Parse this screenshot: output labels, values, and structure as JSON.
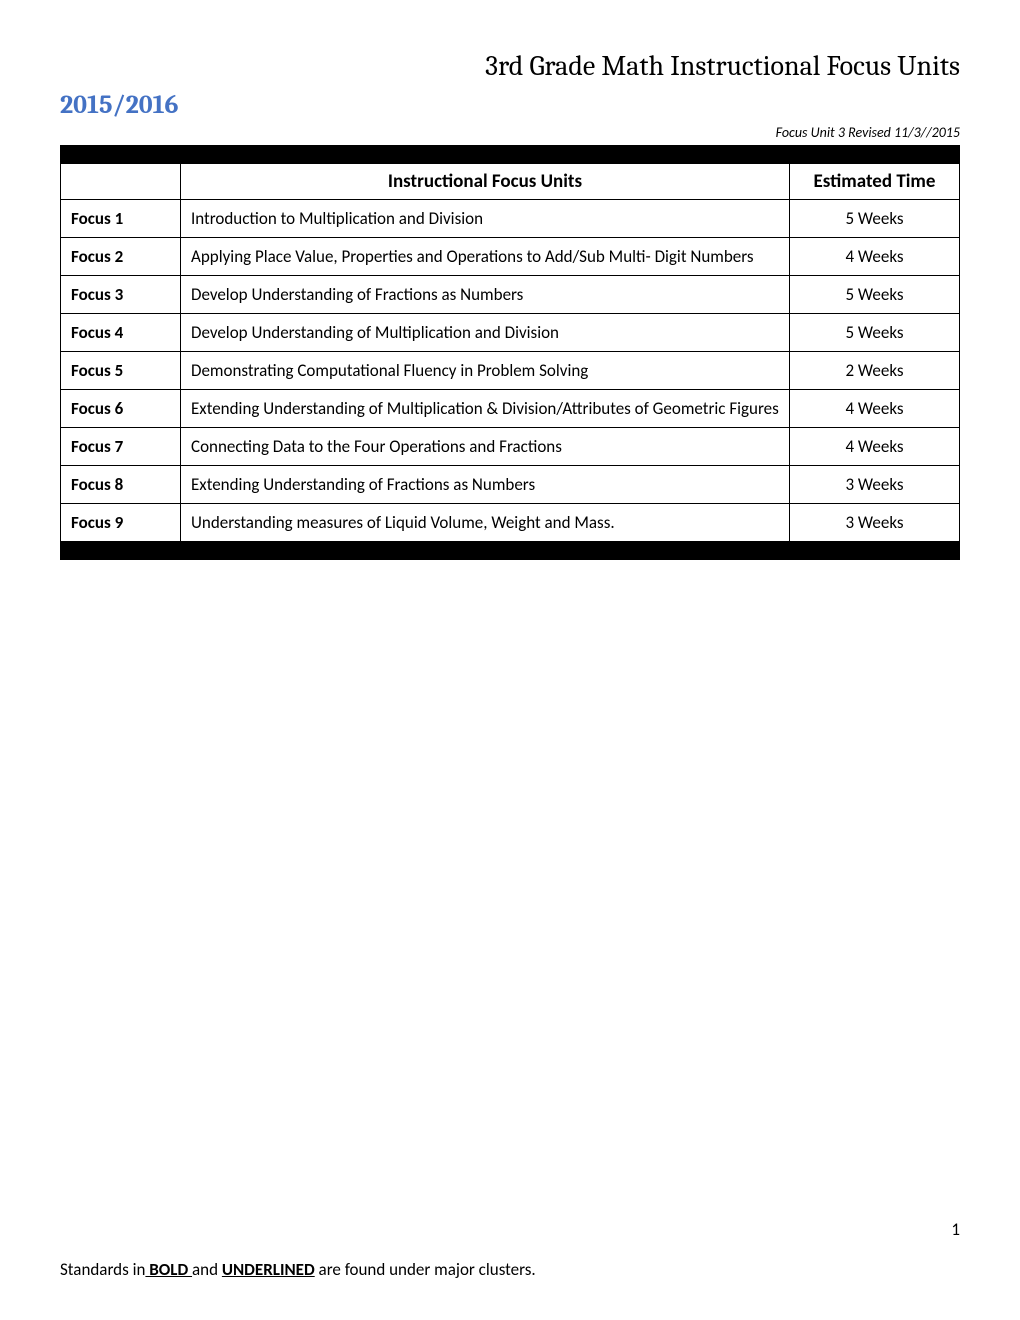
{
  "document": {
    "title": "3rd Grade Math Instructional Focus Units",
    "year": "2015/2016",
    "revised_note": "Focus Unit 3 Revised 11/3//2015",
    "page_number": "1",
    "footer_prefix": "Standards in",
    "footer_bold1": " BOLD ",
    "footer_and": "and ",
    "footer_bold2": "UNDERLINED",
    "footer_suffix": " are found under major clusters."
  },
  "table": {
    "headers": {
      "col1": "",
      "col2": "Instructional Focus Units",
      "col3": "Estimated Time"
    },
    "rows": [
      {
        "focus": "Focus 1",
        "unit": "Introduction to Multiplication and Division",
        "time": "5 Weeks"
      },
      {
        "focus": "Focus 2",
        "unit": "Applying Place Value, Properties and Operations to Add/Sub Multi- Digit Numbers",
        "time": "4 Weeks"
      },
      {
        "focus": "Focus 3",
        "unit": "Develop Understanding of Fractions as Numbers",
        "time": "5 Weeks"
      },
      {
        "focus": "Focus 4",
        "unit": "Develop Understanding of Multiplication and Division",
        "time": "5 Weeks"
      },
      {
        "focus": "Focus 5",
        "unit": "Demonstrating Computational Fluency in Problem Solving",
        "time": "2 Weeks"
      },
      {
        "focus": "Focus 6",
        "unit": "Extending Understanding of Multiplication & Division/Attributes of Geometric Figures",
        "time": "4 Weeks"
      },
      {
        "focus": "Focus 7",
        "unit": "Connecting Data to the Four Operations and Fractions",
        "time": "4 Weeks"
      },
      {
        "focus": "Focus 8",
        "unit": "Extending Understanding of Fractions as Numbers",
        "time": "3 Weeks"
      },
      {
        "focus": "Focus 9",
        "unit": "Understanding measures of Liquid Volume, Weight and Mass.",
        "time": "3 Weeks"
      }
    ]
  },
  "styling": {
    "year_color": "#4472c4",
    "text_color": "#000000",
    "background_color": "#ffffff",
    "black_row_color": "#000000",
    "border_color": "#000000",
    "title_fontsize": 28,
    "year_fontsize": 26,
    "body_fontsize": 17,
    "header_fontsize": 19,
    "revised_fontsize": 14
  }
}
